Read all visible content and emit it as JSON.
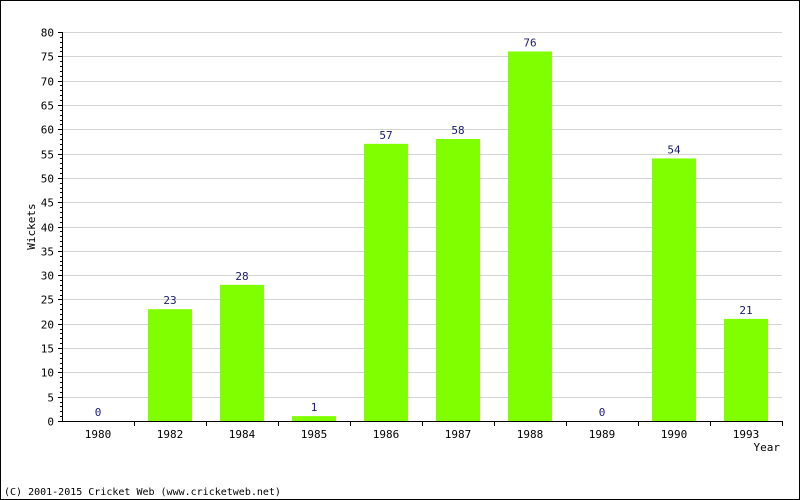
{
  "chart_data": {
    "type": "bar",
    "categories": [
      "1980",
      "1982",
      "1984",
      "1985",
      "1986",
      "1987",
      "1988",
      "1989",
      "1990",
      "1993"
    ],
    "values": [
      0,
      23,
      28,
      1,
      57,
      58,
      76,
      0,
      54,
      21
    ],
    "xlabel": "Year",
    "ylabel": "Wickets",
    "ylim": [
      0,
      80
    ],
    "ytick_step": 5,
    "grid": true,
    "bar_color": "#80ff00",
    "value_label_color": "#1a1a6e"
  },
  "footer": {
    "copyright": "(C) 2001-2015 Cricket Web (www.cricketweb.net)"
  }
}
